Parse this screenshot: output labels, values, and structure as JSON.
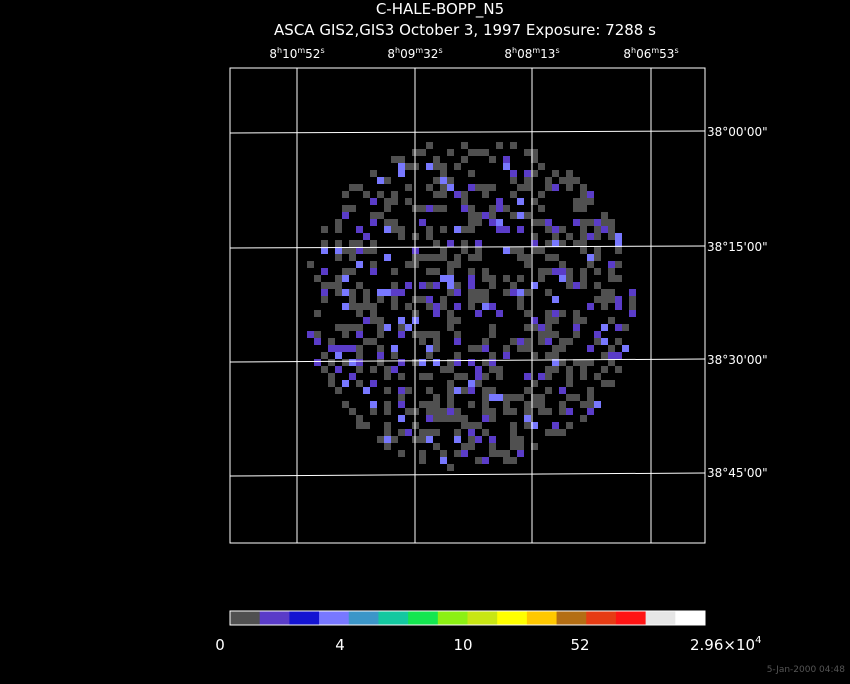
{
  "header": {
    "title": "C-HALE-BOPP_N5",
    "subtitle": "ASCA GIS2,GIS3 October 3, 1997 Exposure: 7288 s"
  },
  "ra_labels": [
    [
      "8",
      "h",
      "10",
      "m",
      "52",
      "s"
    ],
    [
      "8",
      "h",
      "09",
      "m",
      "32",
      "s"
    ],
    [
      "8",
      "h",
      "08",
      "m",
      "13",
      "s"
    ],
    [
      "8",
      "h",
      "06",
      "m",
      "53",
      "s"
    ]
  ],
  "dec_labels": [
    "38°00'00\"",
    "38°15'00\"",
    "38°30'00\"",
    "38°45'00\""
  ],
  "colorbar": {
    "colors": [
      "#505050",
      "#5a3cc8",
      "#1414d2",
      "#7878ff",
      "#3c96c8",
      "#14c8a0",
      "#14e650",
      "#8cf014",
      "#c8e614",
      "#ffff00",
      "#ffc800",
      "#b46e14",
      "#e63c14",
      "#ff1414",
      "#e6e6e6",
      "#ffffff"
    ],
    "labels": [
      "0",
      "4",
      "10",
      "52",
      [
        "2.96×10",
        "4"
      ]
    ]
  },
  "footer": "5-Jan-2000 04:48"
}
